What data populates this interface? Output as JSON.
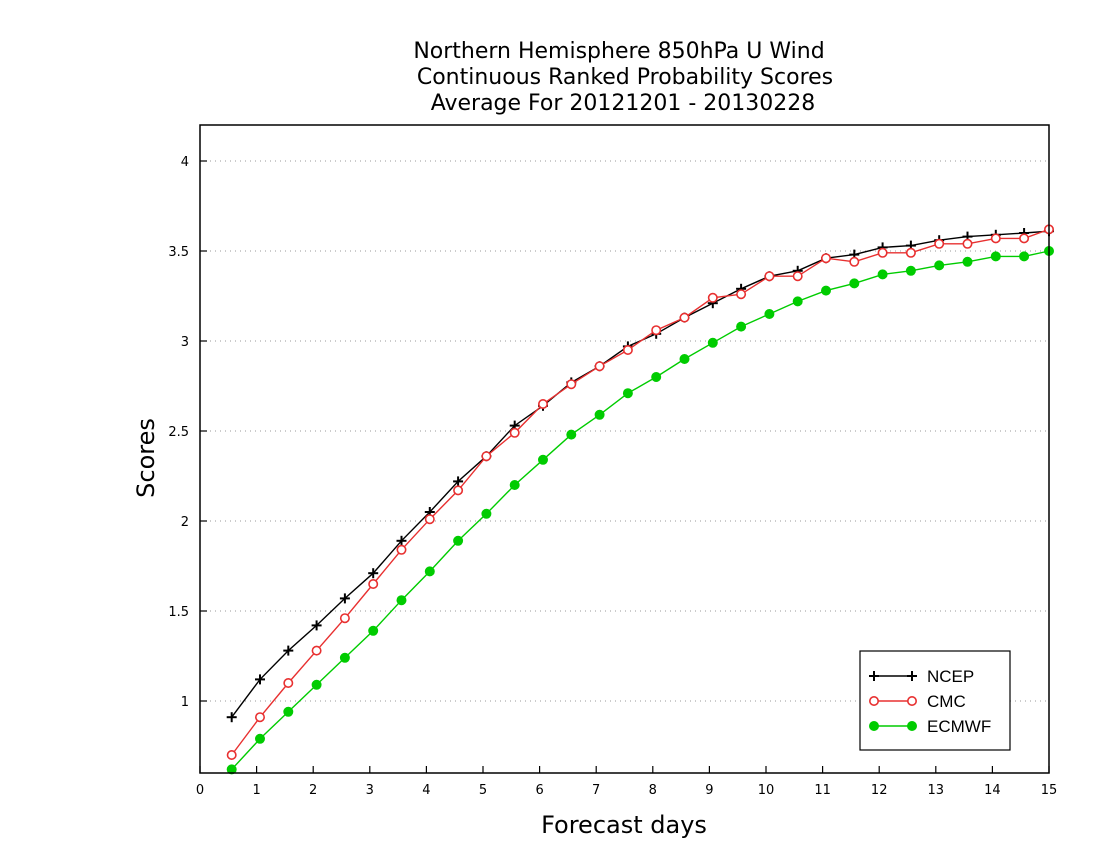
{
  "chart_data": {
    "type": "line",
    "title_lines": [
      "Northern Hemisphere 850hPa U Wind",
      "Continuous Ranked Probability Scores",
      "Average For 20121201 - 20130228"
    ],
    "xlabel": "Forecast days",
    "ylabel": "Scores",
    "xlim": [
      0,
      15
    ],
    "ylim": [
      0.6,
      4.2
    ],
    "xticks": [
      0,
      1,
      2,
      3,
      4,
      5,
      6,
      7,
      8,
      9,
      10,
      11,
      12,
      13,
      14,
      15
    ],
    "yticks": [
      1,
      1.5,
      2,
      2.5,
      3,
      3.5,
      4
    ],
    "ytick_labels": [
      "1",
      "1.5",
      "2",
      "2.5",
      "3",
      "3.5",
      "4"
    ],
    "grid": "horizontal dotted",
    "legend_position": "bottom-right",
    "x": [
      0.56,
      1.06,
      1.56,
      2.06,
      2.56,
      3.06,
      3.56,
      4.06,
      4.56,
      5.06,
      5.56,
      6.06,
      6.56,
      7.06,
      7.56,
      8.06,
      8.56,
      9.06,
      9.56,
      10.06,
      10.56,
      11.06,
      11.56,
      12.06,
      12.56,
      13.06,
      13.56,
      14.06,
      14.56,
      15.0
    ],
    "series": [
      {
        "name": "NCEP",
        "color": "#000000",
        "marker": "plus",
        "values": [
          0.91,
          1.12,
          1.28,
          1.42,
          1.57,
          1.71,
          1.89,
          2.05,
          2.22,
          2.36,
          2.53,
          2.64,
          2.77,
          2.86,
          2.97,
          3.04,
          3.13,
          3.21,
          3.29,
          3.36,
          3.39,
          3.46,
          3.48,
          3.52,
          3.53,
          3.56,
          3.58,
          3.59,
          3.6,
          3.61
        ]
      },
      {
        "name": "CMC",
        "color": "#e83030",
        "marker": "open-circle",
        "values": [
          0.7,
          0.91,
          1.1,
          1.28,
          1.46,
          1.65,
          1.84,
          2.01,
          2.17,
          2.36,
          2.49,
          2.65,
          2.76,
          2.86,
          2.95,
          3.06,
          3.13,
          3.24,
          3.26,
          3.36,
          3.36,
          3.46,
          3.44,
          3.49,
          3.49,
          3.54,
          3.54,
          3.57,
          3.57,
          3.62
        ]
      },
      {
        "name": "ECMWF",
        "color": "#00cc00",
        "marker": "filled-circle",
        "values": [
          0.62,
          0.79,
          0.94,
          1.09,
          1.24,
          1.39,
          1.56,
          1.72,
          1.89,
          2.04,
          2.2,
          2.34,
          2.48,
          2.59,
          2.71,
          2.8,
          2.9,
          2.99,
          3.08,
          3.15,
          3.22,
          3.28,
          3.32,
          3.37,
          3.39,
          3.42,
          3.44,
          3.47,
          3.47,
          3.5
        ]
      }
    ]
  }
}
